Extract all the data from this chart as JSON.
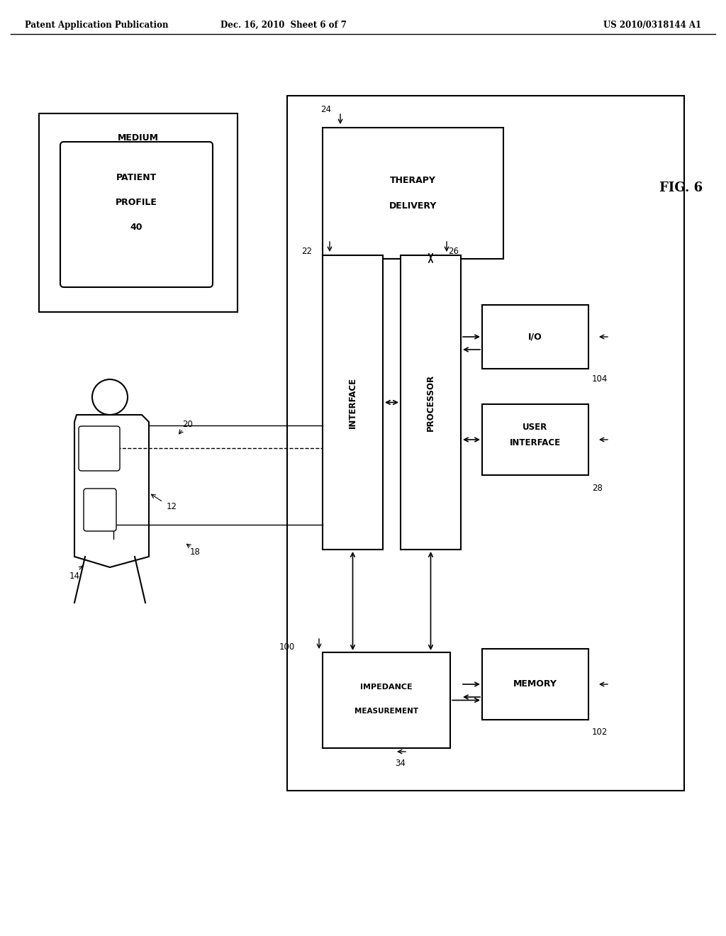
{
  "bg_color": "#ffffff",
  "text_color": "#000000",
  "header_left": "Patent Application Publication",
  "header_mid": "Dec. 16, 2010  Sheet 6 of 7",
  "header_right": "US 2010/0318144 A1",
  "fig_label": "FIG. 6"
}
